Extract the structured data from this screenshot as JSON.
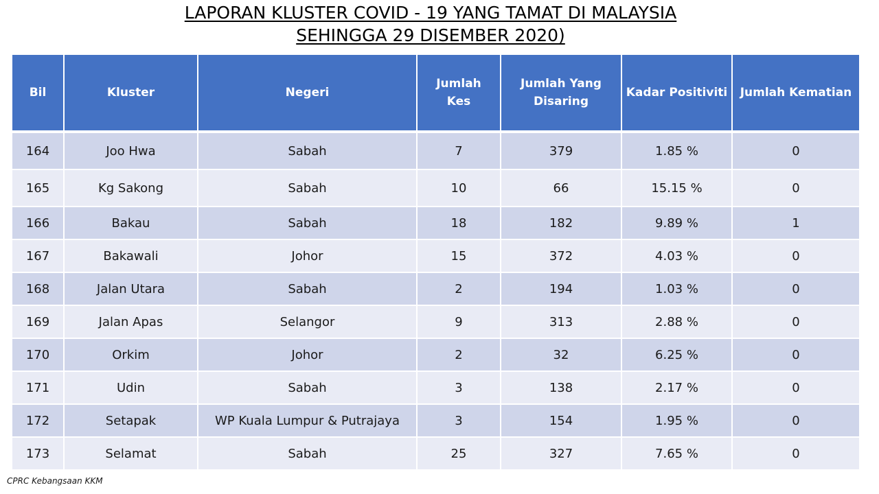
{
  "title": {
    "line1": "LAPORAN KLUSTER COVID - 19 YANG TAMAT DI MALAYSIA",
    "line2": "SEHINGGA 29 DISEMBER 2020)"
  },
  "table": {
    "headers": {
      "bil": "Bil",
      "kluster": "Kluster",
      "negeri": "Negeri",
      "jumlah_kes_1": "Jumlah",
      "jumlah_kes_2": "Kes",
      "jumlah_disaring_1": "Jumlah Yang",
      "jumlah_disaring_2": "Disaring",
      "kadar_positiviti": "Kadar Positiviti",
      "jumlah_kematian": "Jumlah Kematian"
    },
    "rows": [
      {
        "bil": "164",
        "kluster": "Joo Hwa",
        "negeri": "Sabah",
        "kes": "7",
        "disaring": "379",
        "positiviti": "1.85 %",
        "kematian": "0"
      },
      {
        "bil": "165",
        "kluster": "Kg Sakong",
        "negeri": "Sabah",
        "kes": "10",
        "disaring": "66",
        "positiviti": "15.15 %",
        "kematian": "0"
      },
      {
        "bil": "166",
        "kluster": "Bakau",
        "negeri": "Sabah",
        "kes": "18",
        "disaring": "182",
        "positiviti": "9.89 %",
        "kematian": "1"
      },
      {
        "bil": "167",
        "kluster": "Bakawali",
        "negeri": "Johor",
        "kes": "15",
        "disaring": "372",
        "positiviti": "4.03 %",
        "kematian": "0"
      },
      {
        "bil": "168",
        "kluster": "Jalan Utara",
        "negeri": "Sabah",
        "kes": "2",
        "disaring": "194",
        "positiviti": "1.03 %",
        "kematian": "0"
      },
      {
        "bil": "169",
        "kluster": "Jalan Apas",
        "negeri": "Selangor",
        "kes": "9",
        "disaring": "313",
        "positiviti": "2.88 %",
        "kematian": "0"
      },
      {
        "bil": "170",
        "kluster": "Orkim",
        "negeri": "Johor",
        "kes": "2",
        "disaring": "32",
        "positiviti": "6.25 %",
        "kematian": "0"
      },
      {
        "bil": "171",
        "kluster": "Udin",
        "negeri": "Sabah",
        "kes": "3",
        "disaring": "138",
        "positiviti": "2.17 %",
        "kematian": "0"
      },
      {
        "bil": "172",
        "kluster": "Setapak",
        "negeri": "WP Kuala Lumpur & Putrajaya",
        "kes": "3",
        "disaring": "154",
        "positiviti": "1.95 %",
        "kematian": "0"
      },
      {
        "bil": "173",
        "kluster": "Selamat",
        "negeri": "Sabah",
        "kes": "25",
        "disaring": "327",
        "positiviti": "7.65 %",
        "kematian": "0"
      }
    ]
  },
  "source": "CPRC Kebangsaan KKM",
  "colors": {
    "header_bg": "#4472c4",
    "row_odd": "#cfd5ea",
    "row_even": "#e9ebf5"
  }
}
